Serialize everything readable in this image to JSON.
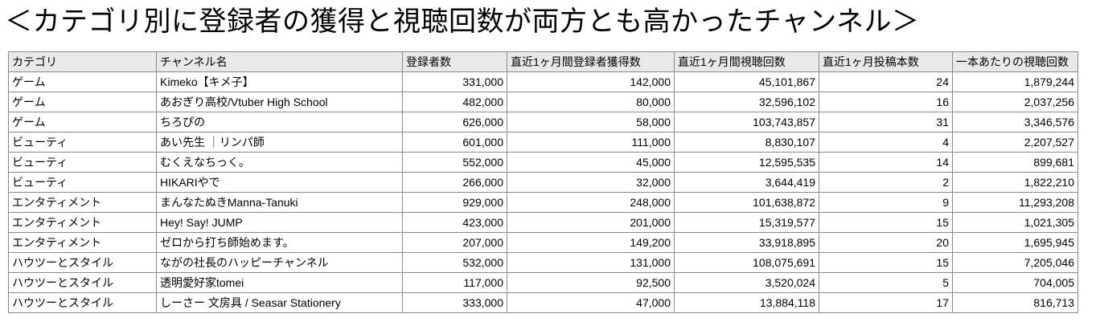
{
  "title": "＜カテゴリ別に登録者の獲得と視聴回数が両方とも高かったチャンネル＞",
  "table": {
    "headers": [
      "カテゴリ",
      "チャンネル名",
      "登録者数",
      "直近1ヶ月間登録者獲得数",
      "直近1ヶ月間視聴回数",
      "直近1ヶ月投稿本数",
      "一本あたりの視聴回数"
    ],
    "rows": [
      [
        "ゲーム",
        "Kimeko【キメ子】",
        "331,000",
        "142,000",
        "45,101,867",
        "24",
        "1,879,244"
      ],
      [
        "ゲーム",
        "あおぎり高校/Vtuber High School",
        "482,000",
        "80,000",
        "32,596,102",
        "16",
        "2,037,256"
      ],
      [
        "ゲーム",
        "ちろぴの",
        "626,000",
        "58,000",
        "103,743,857",
        "31",
        "3,346,576"
      ],
      [
        "ビューティ",
        "あい先生 ｜リンパ師",
        "601,000",
        "111,000",
        "8,830,107",
        "4",
        "2,207,527"
      ],
      [
        "ビューティ",
        "むくえなちっく。",
        "552,000",
        "45,000",
        "12,595,535",
        "14",
        "899,681"
      ],
      [
        "ビューティ",
        "HIKARIやで",
        "266,000",
        "32,000",
        "3,644,419",
        "2",
        "1,822,210"
      ],
      [
        "エンタティメント",
        "まんなたぬきManna-Tanuki",
        "929,000",
        "248,000",
        "101,638,872",
        "9",
        "11,293,208"
      ],
      [
        "エンタティメント",
        "Hey! Say! JUMP",
        "423,000",
        "201,000",
        "15,319,577",
        "15",
        "1,021,305"
      ],
      [
        "エンタティメント",
        "ゼロから打ち師始めます。",
        "207,000",
        "149,200",
        "33,918,895",
        "20",
        "1,695,945"
      ],
      [
        "ハウツーとスタイル",
        "ながの社長のハッピーチャンネル",
        "532,000",
        "131,000",
        "108,075,691",
        "15",
        "7,205,046"
      ],
      [
        "ハウツーとスタイル",
        "透明愛好家tomei",
        "117,000",
        "92,500",
        "3,520,024",
        "5",
        "704,005"
      ],
      [
        "ハウツーとスタイル",
        "しーさー 文房具 / Seasar Stationery",
        "333,000",
        "47,000",
        "13,884,118",
        "17",
        "816,713"
      ]
    ]
  }
}
